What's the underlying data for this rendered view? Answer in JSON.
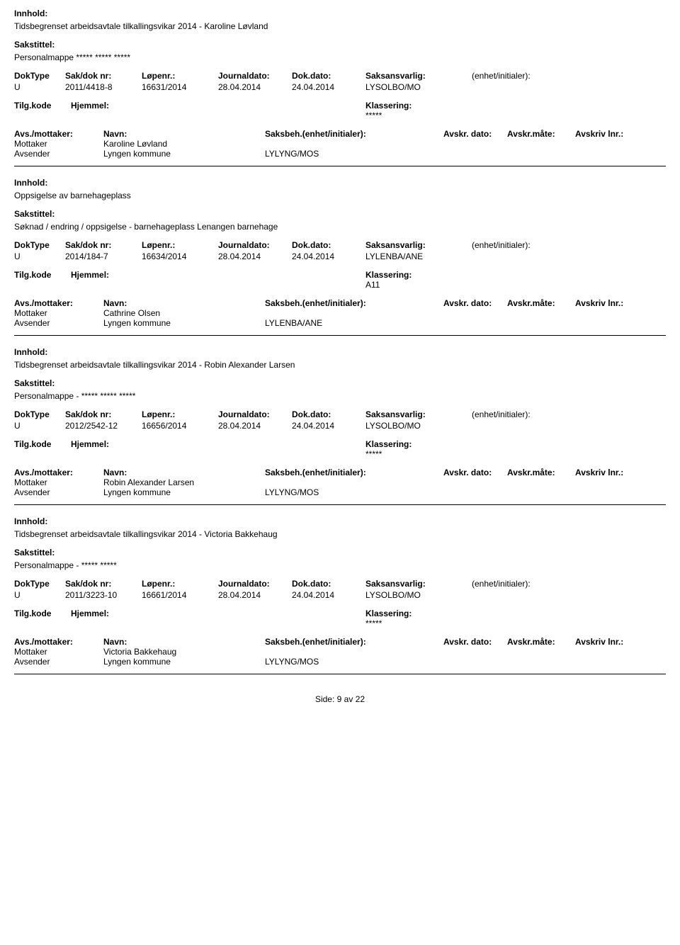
{
  "labels": {
    "innhold": "Innhold:",
    "sakstittel": "Sakstittel:",
    "doktype": "DokType",
    "sakdok": "Sak/dok nr:",
    "lopenr": "Løpenr.:",
    "journaldato": "Journaldato:",
    "dokdato": "Dok.dato:",
    "saksansvarlig": "Saksansvarlig:",
    "enhet": "(enhet/initialer):",
    "tilgkode": "Tilg.kode",
    "hjemmel": "Hjemmel:",
    "klassering": "Klassering:",
    "avsmottaker": "Avs./mottaker:",
    "navn": "Navn:",
    "saksbeh": "Saksbeh.(enhet/initialer):",
    "avskrdato": "Avskr. dato:",
    "avskrmate": "Avskr.måte:",
    "avskrivlnr": "Avskriv lnr.:",
    "mottaker": "Mottaker",
    "avsender": "Avsender"
  },
  "footer": {
    "label": "Side:",
    "page": "9",
    "sep": "av",
    "total": "22"
  },
  "records": [
    {
      "innhold": "Tidsbegrenset arbeidsavtale tilkallingsvikar 2014 - Karoline Løvland",
      "sakstittel": "Personalmappe ***** ***** *****",
      "doktype": "U",
      "sakdok": "2011/4418-8",
      "lopenr": "16631/2014",
      "journaldato": "28.04.2014",
      "dokdato": "24.04.2014",
      "saksansvarlig": "LYSOLBO/MO",
      "enhetval": "",
      "tilg": "",
      "hjemmel": "",
      "klassering": "*****",
      "mottaker_navn": "Karoline Løvland",
      "avsender_navn": "Lyngen kommune",
      "avsender_code": "LYLYNG/MOS"
    },
    {
      "innhold": "Oppsigelse av barnehageplass",
      "sakstittel": "Søknad / endring / oppsigelse - barnehageplass Lenangen barnehage",
      "doktype": "U",
      "sakdok": "2014/184-7",
      "lopenr": "16634/2014",
      "journaldato": "28.04.2014",
      "dokdato": "24.04.2014",
      "saksansvarlig": "LYLENBA/ANE",
      "enhetval": "",
      "tilg": "",
      "hjemmel": "",
      "klassering": "A11",
      "mottaker_navn": "Cathrine Olsen",
      "avsender_navn": "Lyngen kommune",
      "avsender_code": "LYLENBA/ANE"
    },
    {
      "innhold": "Tidsbegrenset arbeidsavtale tilkallingsvikar 2014 - Robin Alexander Larsen",
      "sakstittel": "Personalmappe - ***** ***** *****",
      "doktype": "U",
      "sakdok": "2012/2542-12",
      "lopenr": "16656/2014",
      "journaldato": "28.04.2014",
      "dokdato": "24.04.2014",
      "saksansvarlig": "LYSOLBO/MO",
      "enhetval": "",
      "tilg": "",
      "hjemmel": "",
      "klassering": "*****",
      "mottaker_navn": "Robin Alexander Larsen",
      "avsender_navn": "Lyngen kommune",
      "avsender_code": "LYLYNG/MOS"
    },
    {
      "innhold": "Tidsbegrenset arbeidsavtale tilkallingsvikar 2014 - Victoria Bakkehaug",
      "sakstittel": "Personalmappe - ***** *****",
      "doktype": "U",
      "sakdok": "2011/3223-10",
      "lopenr": "16661/2014",
      "journaldato": "28.04.2014",
      "dokdato": "24.04.2014",
      "saksansvarlig": "LYSOLBO/MO",
      "enhetval": "",
      "tilg": "",
      "hjemmel": "",
      "klassering": "*****",
      "mottaker_navn": "Victoria Bakkehaug",
      "avsender_navn": "Lyngen kommune",
      "avsender_code": "LYLYNG/MOS"
    }
  ]
}
